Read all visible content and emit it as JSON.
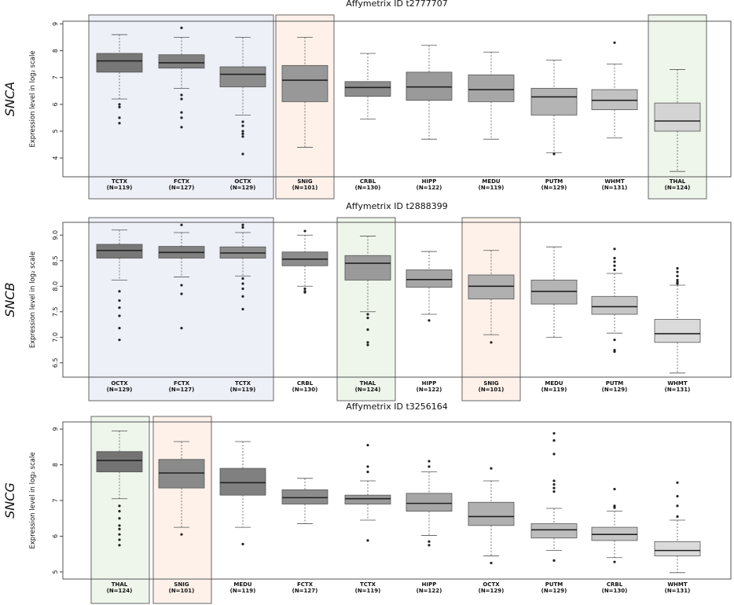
{
  "chart_data": [
    {
      "type": "box",
      "title": "Affymetrix ID t2777707",
      "gene_label": "SNCA",
      "ylabel": "Expression level in log₂ scale",
      "ylim": [
        3.3,
        9.1
      ],
      "yticks": [
        "4",
        "5",
        "6",
        "7",
        "8",
        "9"
      ],
      "categories": [
        {
          "name": "TCTX",
          "n": "(N=119)",
          "q1": 7.2,
          "median": 7.62,
          "q3": 7.9,
          "wlo": 6.2,
          "whi": 8.6,
          "outliers": [
            6.0,
            5.9,
            5.5,
            5.3
          ],
          "color": "#777777"
        },
        {
          "name": "FCTX",
          "n": "(N=127)",
          "q1": 7.35,
          "median": 7.55,
          "q3": 7.85,
          "wlo": 6.6,
          "whi": 8.5,
          "outliers": [
            8.85,
            6.35,
            6.2,
            5.7,
            5.5,
            5.15
          ],
          "color": "#808080"
        },
        {
          "name": "OCTX",
          "n": "(N=129)",
          "q1": 6.65,
          "median": 7.12,
          "q3": 7.4,
          "wlo": 5.6,
          "whi": 8.5,
          "outliers": [
            5.35,
            5.2,
            5.0,
            4.9,
            4.8,
            4.15
          ],
          "color": "#8c8c8c"
        },
        {
          "name": "SNIG",
          "n": "(N=101)",
          "q1": 6.1,
          "median": 6.9,
          "q3": 7.45,
          "wlo": 4.4,
          "whi": 8.5,
          "outliers": [],
          "color": "#989898"
        },
        {
          "name": "CRBL",
          "n": "(N=130)",
          "q1": 6.3,
          "median": 6.63,
          "q3": 6.85,
          "wlo": 5.45,
          "whi": 7.9,
          "outliers": [],
          "color": "#8c8c8c"
        },
        {
          "name": "HIPP",
          "n": "(N=122)",
          "q1": 6.15,
          "median": 6.65,
          "q3": 7.2,
          "wlo": 4.7,
          "whi": 8.2,
          "outliers": [],
          "color": "#9a9a9a"
        },
        {
          "name": "MEDU",
          "n": "(N=119)",
          "q1": 6.1,
          "median": 6.55,
          "q3": 7.1,
          "wlo": 4.7,
          "whi": 7.95,
          "outliers": [],
          "color": "#a6a6a6"
        },
        {
          "name": "PUTM",
          "n": "(N=129)",
          "q1": 5.6,
          "median": 6.28,
          "q3": 6.6,
          "wlo": 4.2,
          "whi": 7.65,
          "outliers": [
            4.15
          ],
          "color": "#b4b4b4"
        },
        {
          "name": "WHMT",
          "n": "(N=131)",
          "q1": 5.8,
          "median": 6.15,
          "q3": 6.55,
          "wlo": 4.75,
          "whi": 7.5,
          "outliers": [
            8.3
          ],
          "color": "#c2c2c2"
        },
        {
          "name": "THAL",
          "n": "(N=124)",
          "q1": 5.0,
          "median": 5.38,
          "q3": 6.05,
          "wlo": 3.5,
          "whi": 7.3,
          "outliers": [],
          "color": "#d4d4d4"
        }
      ]
    },
    {
      "type": "box",
      "title": "Affymetrix ID t2888399",
      "gene_label": "SNCB",
      "ylabel": "Expression level in log₂ scale",
      "ylim": [
        6.22,
        9.25
      ],
      "yticks": [
        "6.5",
        "7.0",
        "7.5",
        "8.0",
        "8.5",
        "9.0"
      ],
      "categories": [
        {
          "name": "OCTX",
          "n": "(N=129)",
          "q1": 8.55,
          "median": 8.7,
          "q3": 8.82,
          "wlo": 8.12,
          "whi": 9.1,
          "outliers": [
            7.9,
            7.72,
            7.58,
            7.42,
            7.18,
            6.95
          ],
          "color": "#777777"
        },
        {
          "name": "FCTX",
          "n": "(N=127)",
          "q1": 8.55,
          "median": 8.66,
          "q3": 8.78,
          "wlo": 8.18,
          "whi": 9.05,
          "outliers": [
            9.2,
            8.02,
            7.85,
            7.18
          ],
          "color": "#808080"
        },
        {
          "name": "TCTX",
          "n": "(N=119)",
          "q1": 8.55,
          "median": 8.65,
          "q3": 8.77,
          "wlo": 8.2,
          "whi": 9.05,
          "outliers": [
            9.2,
            9.15,
            8.15,
            8.05,
            7.95,
            7.8,
            7.55
          ],
          "color": "#8c8c8c"
        },
        {
          "name": "CRBL",
          "n": "(N=130)",
          "q1": 8.4,
          "median": 8.53,
          "q3": 8.67,
          "wlo": 8.0,
          "whi": 9.0,
          "outliers": [
            9.08,
            7.95,
            7.9,
            7.88
          ],
          "color": "#8c8c8c"
        },
        {
          "name": "THAL",
          "n": "(N=124)",
          "q1": 8.12,
          "median": 8.45,
          "q3": 8.6,
          "wlo": 7.5,
          "whi": 8.98,
          "outliers": [
            7.45,
            7.38,
            7.15,
            6.9,
            6.85
          ],
          "color": "#9a9a9a"
        },
        {
          "name": "HIPP",
          "n": "(N=122)",
          "q1": 7.98,
          "median": 8.13,
          "q3": 8.32,
          "wlo": 7.45,
          "whi": 8.68,
          "outliers": [
            7.33
          ],
          "color": "#a6a6a6"
        },
        {
          "name": "SNIG",
          "n": "(N=101)",
          "q1": 7.75,
          "median": 8.0,
          "q3": 8.22,
          "wlo": 7.05,
          "whi": 8.7,
          "outliers": [
            6.9
          ],
          "color": "#b0b0b0"
        },
        {
          "name": "MEDU",
          "n": "(N=119)",
          "q1": 7.65,
          "median": 7.9,
          "q3": 8.12,
          "wlo": 7.0,
          "whi": 8.77,
          "outliers": [],
          "color": "#b4b4b4"
        },
        {
          "name": "PUTM",
          "n": "(N=129)",
          "q1": 7.45,
          "median": 7.6,
          "q3": 7.8,
          "wlo": 7.08,
          "whi": 8.25,
          "outliers": [
            8.73,
            8.55,
            8.48,
            8.4,
            8.32,
            6.95,
            6.75,
            6.72
          ],
          "color": "#c6c6c6"
        },
        {
          "name": "WHMT",
          "n": "(N=131)",
          "q1": 6.9,
          "median": 7.07,
          "q3": 7.35,
          "wlo": 6.3,
          "whi": 8.02,
          "outliers": [
            8.35,
            8.28,
            8.2,
            8.12,
            8.08,
            8.05
          ],
          "color": "#dadada"
        }
      ]
    },
    {
      "type": "box",
      "title": "Affymetrix ID t3256164",
      "gene_label": "SNCG",
      "ylabel": "Expression level in log₂ scale",
      "ylim": [
        4.8,
        9.2
      ],
      "yticks": [
        "5",
        "6",
        "7",
        "8",
        "9"
      ],
      "categories": [
        {
          "name": "THAL",
          "n": "(N=124)",
          "q1": 7.8,
          "median": 8.12,
          "q3": 8.37,
          "wlo": 7.05,
          "whi": 8.95,
          "outliers": [
            6.85,
            6.7,
            6.5,
            6.3,
            6.2,
            6.05,
            5.9,
            5.75
          ],
          "color": "#737373"
        },
        {
          "name": "SNIG",
          "n": "(N=101)",
          "q1": 7.35,
          "median": 7.77,
          "q3": 8.15,
          "wlo": 6.25,
          "whi": 8.65,
          "outliers": [
            6.05
          ],
          "color": "#8a8a8a"
        },
        {
          "name": "MEDU",
          "n": "(N=119)",
          "q1": 7.15,
          "median": 7.5,
          "q3": 7.9,
          "wlo": 6.25,
          "whi": 8.65,
          "outliers": [
            5.78
          ],
          "color": "#808080"
        },
        {
          "name": "FCTX",
          "n": "(N=127)",
          "q1": 6.9,
          "median": 7.08,
          "q3": 7.3,
          "wlo": 6.35,
          "whi": 7.62,
          "outliers": [],
          "color": "#8c8c8c"
        },
        {
          "name": "TCTX",
          "n": "(N=119)",
          "q1": 6.9,
          "median": 7.05,
          "q3": 7.15,
          "wlo": 6.45,
          "whi": 7.55,
          "outliers": [
            8.55,
            7.95,
            7.8,
            5.88
          ],
          "color": "#999999"
        },
        {
          "name": "HIPP",
          "n": "(N=122)",
          "q1": 6.7,
          "median": 6.92,
          "q3": 7.2,
          "wlo": 6.02,
          "whi": 7.8,
          "outliers": [
            8.1,
            7.95,
            5.85,
            5.75
          ],
          "color": "#a6a6a6"
        },
        {
          "name": "OCTX",
          "n": "(N=129)",
          "q1": 6.3,
          "median": 6.55,
          "q3": 6.95,
          "wlo": 5.45,
          "whi": 7.55,
          "outliers": [
            7.9,
            5.25
          ],
          "color": "#b0b0b0"
        },
        {
          "name": "PUTM",
          "n": "(N=129)",
          "q1": 5.95,
          "median": 6.18,
          "q3": 6.35,
          "wlo": 5.6,
          "whi": 6.78,
          "outliers": [
            8.88,
            8.68,
            8.3,
            7.55,
            7.45,
            7.35,
            7.25,
            5.32
          ],
          "color": "#bdbdbd"
        },
        {
          "name": "CRBL",
          "n": "(N=130)",
          "q1": 5.88,
          "median": 6.05,
          "q3": 6.25,
          "wlo": 5.4,
          "whi": 6.7,
          "outliers": [
            7.32,
            6.85,
            6.8,
            5.28
          ],
          "color": "#c6c6c6"
        },
        {
          "name": "WHMT",
          "n": "(N=131)",
          "q1": 5.45,
          "median": 5.6,
          "q3": 5.85,
          "wlo": 4.98,
          "whi": 6.45,
          "outliers": [
            7.5,
            7.12,
            6.85,
            6.55
          ],
          "color": "#dadada"
        }
      ]
    }
  ],
  "highlight_colors": {
    "blue": "#eef0f8",
    "orange": "#fdf1ea",
    "green": "#eef5ea",
    "border": "#666666"
  }
}
